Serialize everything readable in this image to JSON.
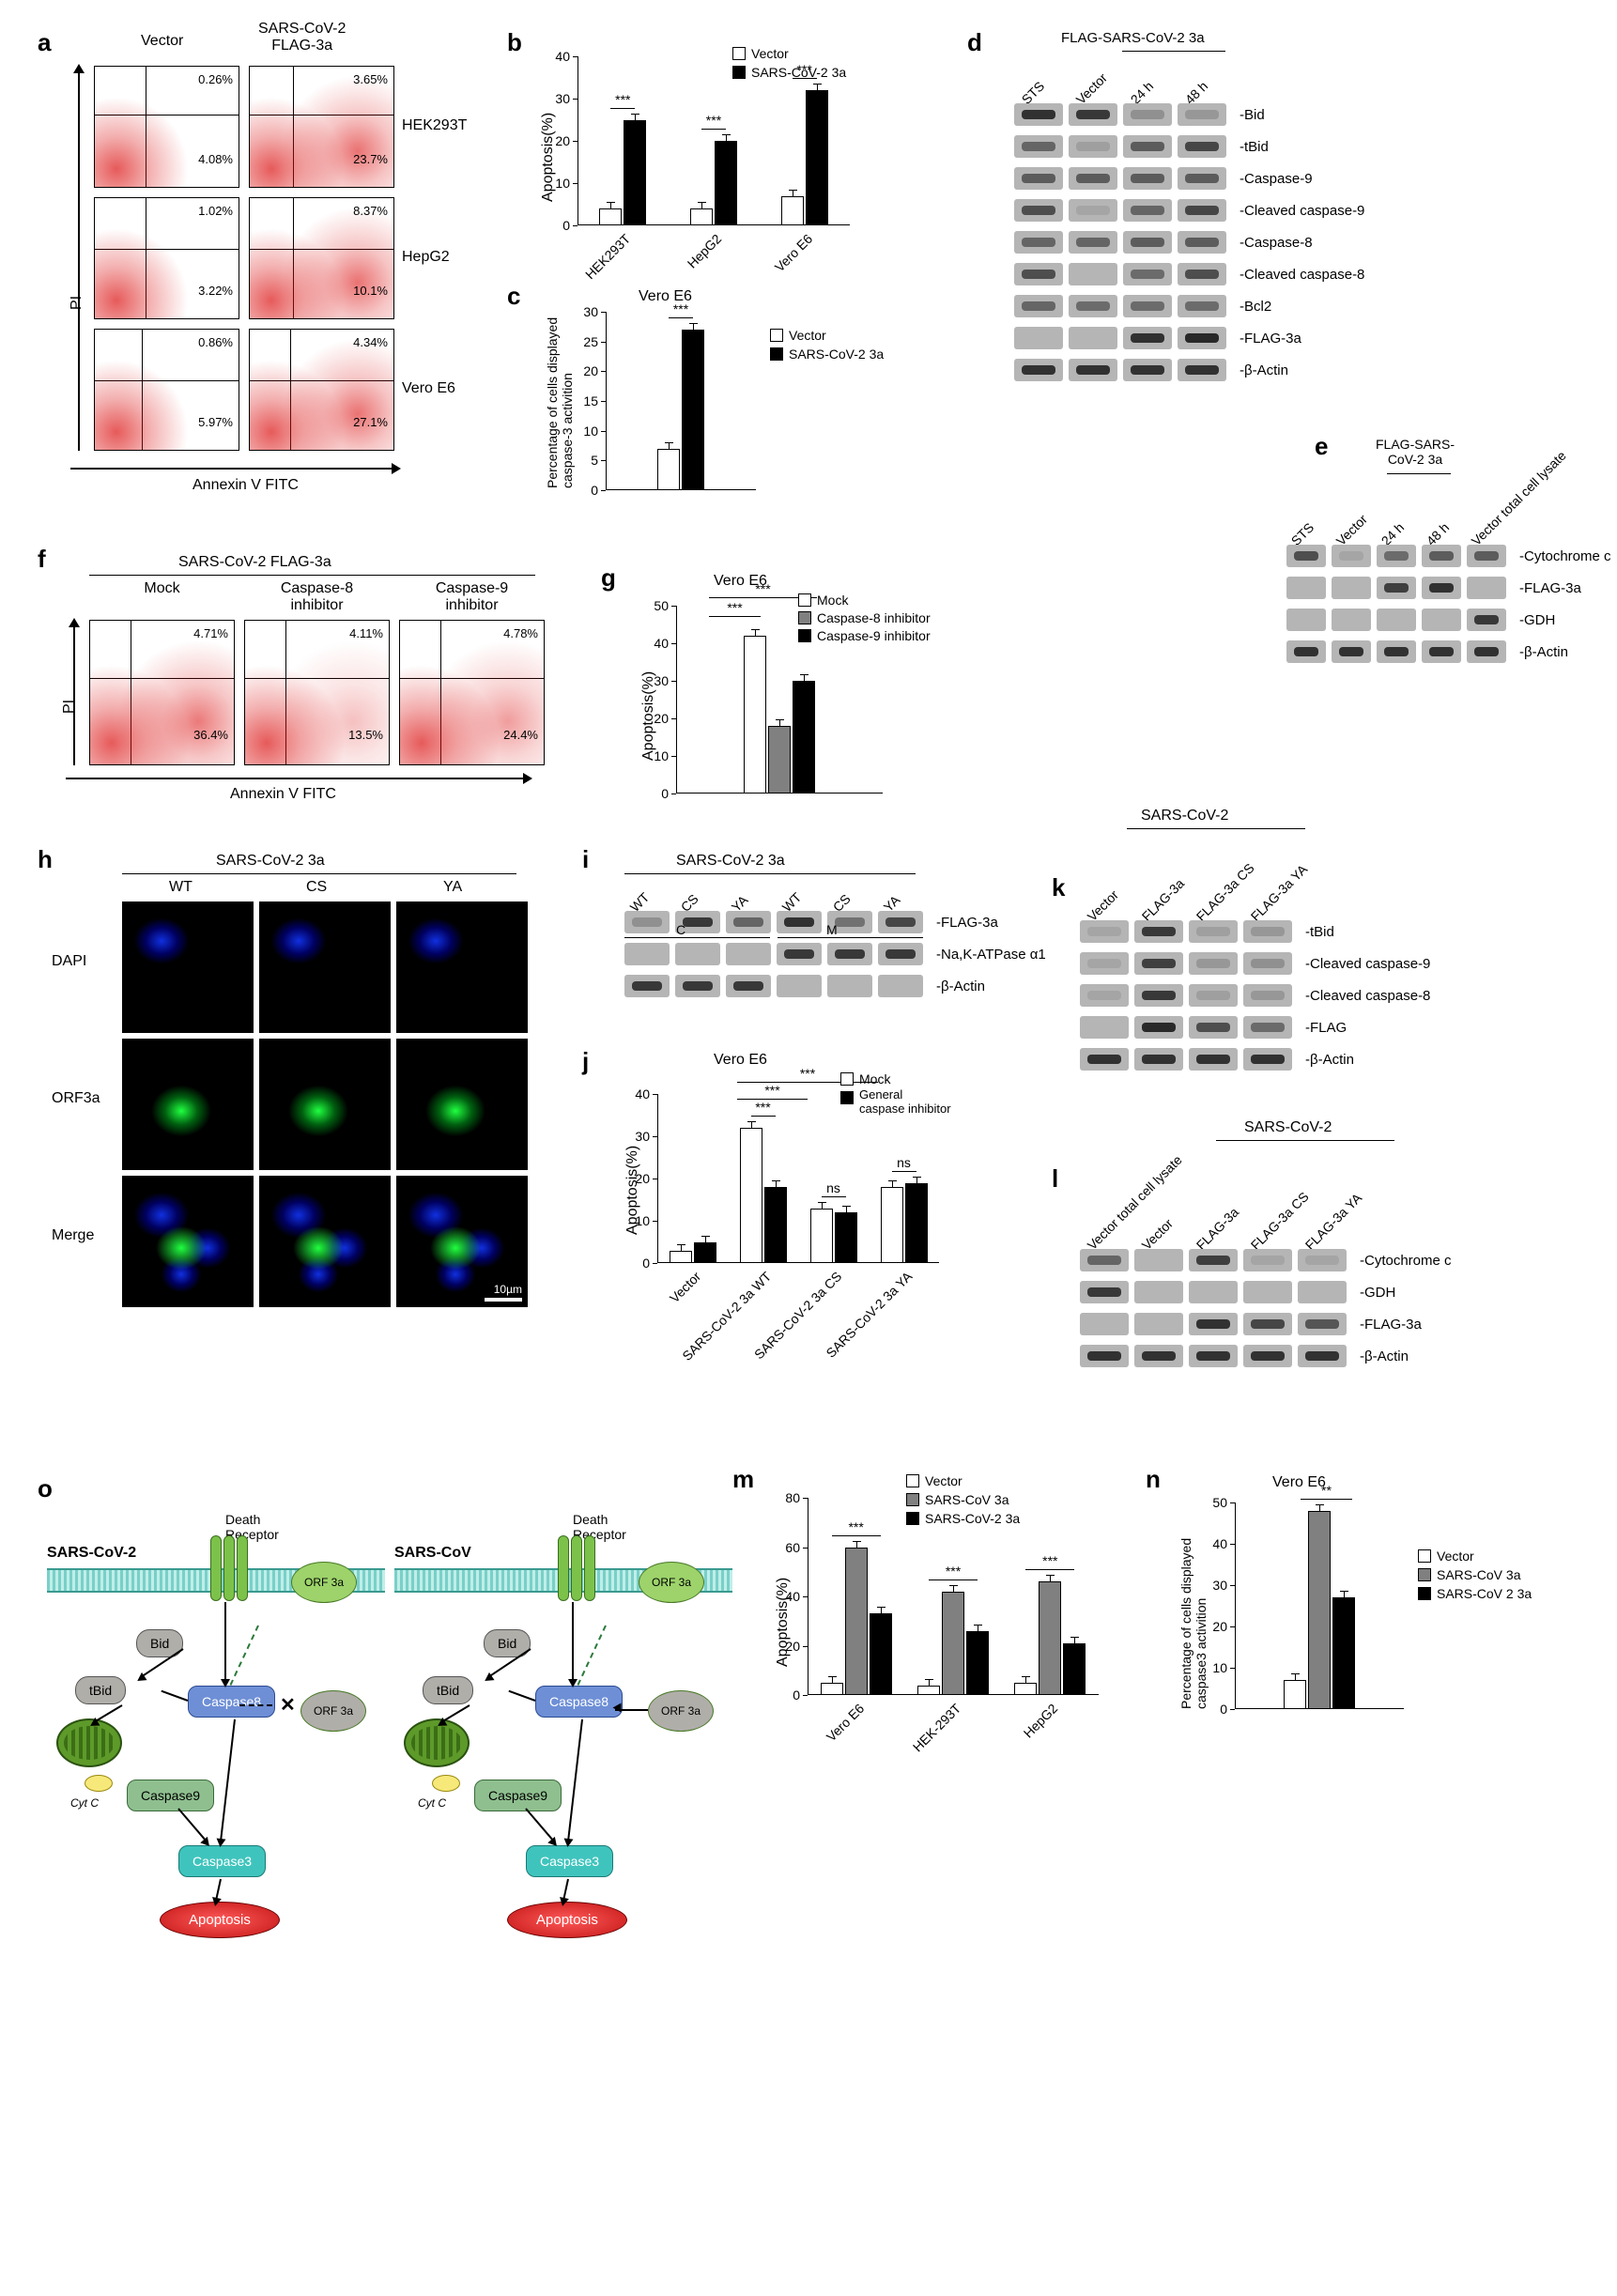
{
  "panel_labels": {
    "a": "a",
    "b": "b",
    "c": "c",
    "d": "d",
    "e": "e",
    "f": "f",
    "g": "g",
    "h": "h",
    "i": "i",
    "j": "j",
    "k": "k",
    "l": "l",
    "m": "m",
    "n": "n",
    "o": "o"
  },
  "a": {
    "header_vector": "Vector",
    "header_3a": "SARS-CoV-2\nFLAG-3a",
    "rows": [
      "HEK293T",
      "HepG2",
      "Vero E6"
    ],
    "y_axis": "PI",
    "x_axis": "Annexin V FITC",
    "pct": {
      "hek_vector": {
        "q2": "0.26%",
        "q4": "4.08%"
      },
      "hek_3a": {
        "q2": "3.65%",
        "q4": "23.7%"
      },
      "hepg2_vector": {
        "q2": "1.02%",
        "q4": "3.22%"
      },
      "hepg2_3a": {
        "q2": "8.37%",
        "q4": "10.1%"
      },
      "vero_vector": {
        "q2": "0.86%",
        "q4": "5.97%"
      },
      "vero_3a": {
        "q2": "4.34%",
        "q4": "27.1%"
      }
    }
  },
  "b": {
    "ylabel": "Apoptosis(%)",
    "ymax": 40,
    "ytick": 10,
    "categories": [
      "HEK293T",
      "HepG2",
      "Vero E6"
    ],
    "vector_vals": [
      4,
      4,
      7
    ],
    "s3a_vals": [
      25,
      20,
      32
    ],
    "legend": {
      "vector": "Vector",
      "s3a": "SARS-CoV-2 3a"
    },
    "sig": [
      "***",
      "***",
      "***"
    ],
    "bar_colors": {
      "vector": "#ffffff",
      "s3a": "#000000"
    }
  },
  "c": {
    "title": "Vero E6",
    "ylabel": "Percentage of cells displayed\ncaspase-3 activition",
    "ymax": 30,
    "ytick": 5,
    "vector_val": 7,
    "s3a_val": 27,
    "sig": "***",
    "legend": {
      "vector": "Vector",
      "s3a": "SARS-CoV-2 3a"
    }
  },
  "d": {
    "group_label": "FLAG-SARS-CoV-2 3a",
    "lanes": [
      "STS",
      "Vector",
      "24 h",
      "48 h"
    ],
    "targets": [
      "Bid",
      "tBid",
      "Caspase-9",
      "Cleaved caspase-9",
      "Caspase-8",
      "Cleaved caspase-8",
      "Bcl2",
      "FLAG-3a",
      "β-Actin"
    ],
    "intensities": [
      [
        0.9,
        0.85,
        0.25,
        0.2
      ],
      [
        0.55,
        0.15,
        0.6,
        0.75
      ],
      [
        0.6,
        0.6,
        0.6,
        0.6
      ],
      [
        0.7,
        0.1,
        0.55,
        0.75
      ],
      [
        0.55,
        0.55,
        0.6,
        0.6
      ],
      [
        0.7,
        0.05,
        0.5,
        0.7
      ],
      [
        0.55,
        0.5,
        0.5,
        0.5
      ],
      [
        0.05,
        0.05,
        0.9,
        0.95
      ],
      [
        0.9,
        0.9,
        0.9,
        0.9
      ]
    ]
  },
  "e": {
    "group_label": "FLAG-SARS-\nCoV-2 3a",
    "lanes": [
      "STS",
      "Vector",
      "24 h",
      "48 h",
      "Vector total cell lysate"
    ],
    "targets": [
      "Cytochrome c",
      "FLAG-3a",
      "GDH",
      "β-Actin"
    ],
    "intensities": [
      [
        0.7,
        0.1,
        0.5,
        0.6,
        0.6
      ],
      [
        0.05,
        0.05,
        0.8,
        0.9,
        0.05
      ],
      [
        0.05,
        0.05,
        0.05,
        0.05,
        0.85
      ],
      [
        0.9,
        0.9,
        0.9,
        0.9,
        0.9
      ]
    ]
  },
  "f": {
    "title": "SARS-CoV-2 FLAG-3a",
    "cols": [
      "Mock",
      "Caspase-8\ninhibitor",
      "Caspase-9\ninhibitor"
    ],
    "pct": [
      {
        "q2": "4.71%",
        "q4": "36.4%"
      },
      {
        "q2": "4.11%",
        "q4": "13.5%"
      },
      {
        "q2": "4.78%",
        "q4": "24.4%"
      }
    ],
    "y_axis": "PI",
    "x_axis": "Annexin V FITC"
  },
  "g": {
    "title": "Vero E6",
    "ylabel": "Apoptosis(%)",
    "ymax": 50,
    "ytick": 10,
    "vals": [
      42,
      18,
      30
    ],
    "colors": [
      "#ffffff",
      "#808080",
      "#000000"
    ],
    "legend": [
      "Mock",
      "Caspase-8 inhibitor",
      "Caspase-9 inhibitor"
    ],
    "sig": [
      "***",
      "***"
    ]
  },
  "h": {
    "title": "SARS-CoV-2 3a",
    "cols": [
      "WT",
      "CS",
      "YA"
    ],
    "rows": [
      "DAPI",
      "ORF3a",
      "Merge"
    ],
    "scalebar": "10µm"
  },
  "i": {
    "title": "SARS-CoV-2 3a",
    "fractions": [
      "C",
      "M"
    ],
    "variants": [
      "WT",
      "CS",
      "YA"
    ],
    "targets": [
      "FLAG-3a",
      "Na,K-ATPase α1",
      "β-Actin"
    ],
    "intensities": [
      [
        0.25,
        0.85,
        0.55,
        0.9,
        0.45,
        0.75
      ],
      [
        0.05,
        0.05,
        0.05,
        0.85,
        0.85,
        0.85
      ],
      [
        0.85,
        0.85,
        0.85,
        0.05,
        0.05,
        0.05
      ]
    ]
  },
  "j": {
    "title": "Vero E6",
    "ylabel": "Apoptosis(%)",
    "ymax": 40,
    "ytick": 10,
    "categories": [
      "Vector",
      "SARS-CoV-2 3a WT",
      "SARS-CoV-2 3a CS",
      "SARS-CoV-2 3a YA"
    ],
    "mock_vals": [
      3,
      32,
      13,
      18
    ],
    "inh_vals": [
      5,
      18,
      12,
      19
    ],
    "legend": {
      "mock": "Mock",
      "inh": "General\ncaspase inhibitor"
    },
    "sig": [
      "",
      "***",
      "ns",
      "ns"
    ],
    "top_sig": [
      "***",
      "***"
    ]
  },
  "k": {
    "title": "SARS-CoV-2",
    "lanes": [
      "Vector",
      "FLAG-3a",
      "FLAG-3a CS",
      "FLAG-3a YA"
    ],
    "targets": [
      "tBid",
      "Cleaved caspase-9",
      "Cleaved caspase-8",
      "FLAG",
      "β-Actin"
    ],
    "intensities": [
      [
        0.1,
        0.85,
        0.15,
        0.2
      ],
      [
        0.1,
        0.8,
        0.2,
        0.25
      ],
      [
        0.1,
        0.85,
        0.15,
        0.2
      ],
      [
        0.05,
        0.95,
        0.7,
        0.5
      ],
      [
        0.9,
        0.9,
        0.9,
        0.9
      ]
    ]
  },
  "l": {
    "title": "SARS-CoV-2",
    "lanes": [
      "Vector\ntotal cell lysate",
      "Vector",
      "FLAG-3a",
      "FLAG-3a CS",
      "FLAG-3a YA"
    ],
    "targets": [
      "Cytochrome c",
      "GDH",
      "FLAG-3a",
      "β-Actin"
    ],
    "intensities": [
      [
        0.55,
        0.05,
        0.8,
        0.1,
        0.1
      ],
      [
        0.85,
        0.05,
        0.05,
        0.05,
        0.05
      ],
      [
        0.05,
        0.05,
        0.9,
        0.75,
        0.65
      ],
      [
        0.9,
        0.9,
        0.9,
        0.9,
        0.9
      ]
    ]
  },
  "m": {
    "ylabel": "Apoptosis(%)",
    "ymax": 80,
    "ytick": 20,
    "categories": [
      "Vero E6",
      "HEK-293T",
      "HepG2"
    ],
    "vector_vals": [
      5,
      4,
      5
    ],
    "scov_vals": [
      60,
      42,
      46
    ],
    "scov2_vals": [
      33,
      26,
      21
    ],
    "legend": {
      "vector": "Vector",
      "scov": "SARS-CoV 3a",
      "scov2": "SARS-CoV-2 3a"
    },
    "sig": [
      "***",
      "***",
      "***"
    ]
  },
  "n": {
    "title": "Vero  E6",
    "ylabel": "Percentage of cells displayed\ncaspase3 activition",
    "ymax": 50,
    "ytick": 10,
    "vals": [
      7,
      48,
      27
    ],
    "legend": {
      "vector": "Vector",
      "scov": "SARS-CoV 3a",
      "scov2": "SARS-CoV 2 3a"
    },
    "sig": "**"
  },
  "o": {
    "left_title": "SARS-CoV-2",
    "right_title": "SARS-CoV",
    "death_receptor": "Death\nReceptor",
    "orf3a": "ORF 3a",
    "bid": "Bid",
    "tbid": "tBid",
    "caspase8": "Caspase8",
    "caspase9": "Caspase9",
    "caspase3": "Caspase3",
    "apoptosis": "Apoptosis",
    "cytc": "Cyt C"
  }
}
